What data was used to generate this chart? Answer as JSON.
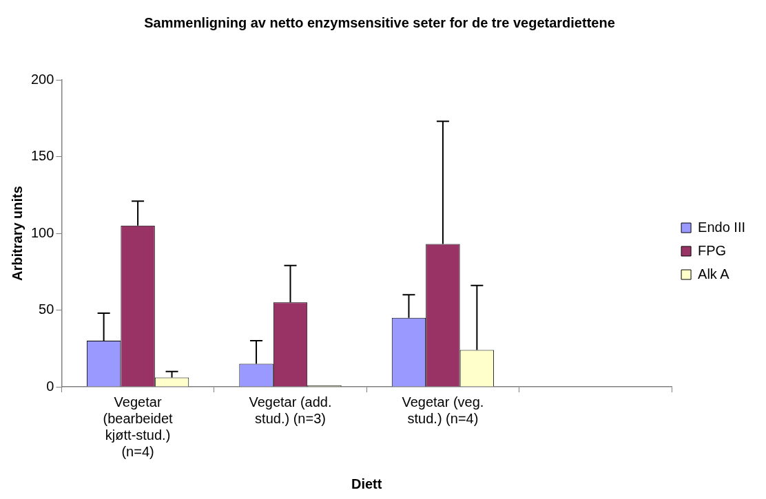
{
  "chart_data": {
    "type": "bar",
    "title": "Sammenligning av netto enzymsensitive seter for de tre vegetardiettene",
    "xlabel": "Diett",
    "ylabel": "Arbitrary units",
    "categories": [
      "Vegetar (bearbeidet kjøtt-stud.) (n=4)",
      "Vegetar (add. stud.) (n=3)",
      "Vegetar (veg. stud.) (n=4)",
      null
    ],
    "series": [
      {
        "name": "Endo III",
        "color": "#9999ff",
        "values": [
          30,
          15,
          45,
          null
        ],
        "errors": [
          [
            30,
            48
          ],
          [
            15,
            30
          ],
          [
            45,
            60
          ],
          null
        ]
      },
      {
        "name": "FPG",
        "color": "#993366",
        "values": [
          105,
          55,
          93,
          null
        ],
        "errors": [
          [
            105,
            121
          ],
          [
            55,
            79
          ],
          [
            93,
            173
          ],
          null
        ]
      },
      {
        "name": "Alk A",
        "color": "#ffffcc",
        "values": [
          6,
          1,
          24,
          null
        ],
        "errors": [
          [
            6,
            10
          ],
          null,
          [
            24,
            66
          ],
          null
        ]
      }
    ],
    "ylim": [
      0,
      200
    ],
    "yticks": [
      0,
      50,
      100,
      150,
      200
    ],
    "grid": false,
    "legend": "right"
  }
}
